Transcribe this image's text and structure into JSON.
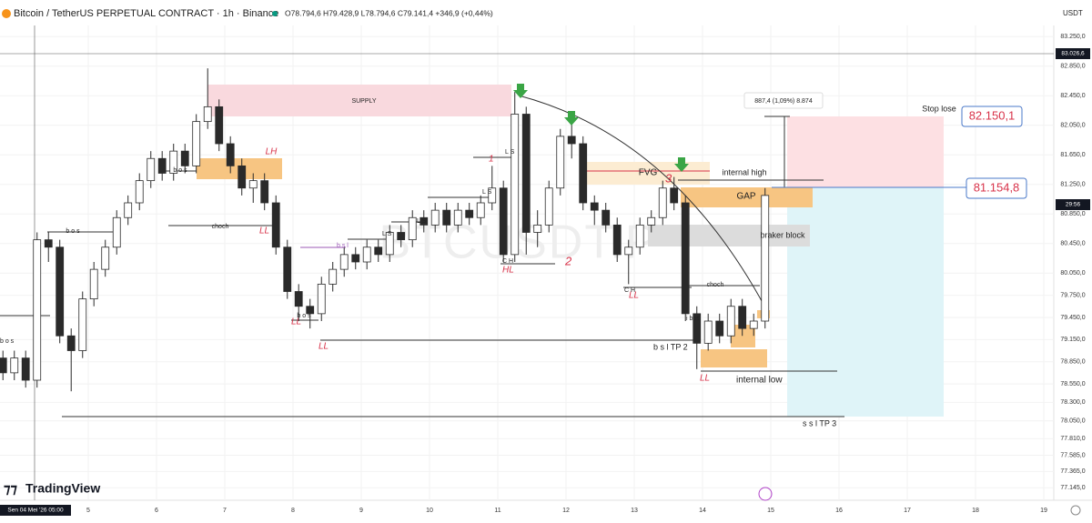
{
  "chart_data": {
    "type": "candlestick",
    "symbol": "Bitcoin / TetherUS PERPETUAL CONTRACT · 1h · Binance",
    "ohlc_legend": "O78.794,6 H79.428,9 L78.794,6 C79.141,4 +346,9 (+0,44%)",
    "currency": "USDT",
    "watermark": "BTCUSDT.P",
    "brand": "TradingView",
    "cursor_date": "Sen 04 Mei '26 05:00",
    "cursor_price": {
      "value": 83026.6,
      "label": "83.026,6"
    },
    "countdown": "29:56",
    "colors": {
      "up": "#ffffff",
      "down": "#2a2a2a",
      "border": "#2a2a2a"
    },
    "x": [
      3.75,
      3.917,
      4.083,
      4.25,
      4.417,
      4.583,
      4.75,
      4.917,
      5.083,
      5.25,
      5.417,
      5.583,
      5.75,
      5.917,
      6.083,
      6.25,
      6.417,
      6.583,
      6.75,
      6.917,
      7.083,
      7.25,
      7.417,
      7.583,
      7.75,
      7.917,
      8.083,
      8.25,
      8.417,
      8.583,
      8.75,
      8.917,
      9.083,
      9.25,
      9.417,
      9.583,
      9.75,
      9.917,
      10.083,
      10.25,
      10.417,
      10.583,
      10.75,
      10.917,
      11.083,
      11.25,
      11.417,
      11.583,
      11.75,
      11.917,
      12.083,
      12.25,
      12.417,
      12.583,
      12.75,
      12.917,
      13.083,
      13.25,
      13.417,
      13.583,
      13.75,
      13.917,
      14.083,
      14.25,
      14.417,
      14.583,
      14.75,
      14.917
    ],
    "open": [
      78900,
      78700,
      78900,
      78600,
      80500,
      80400,
      79200,
      79000,
      79700,
      80100,
      80400,
      80800,
      81000,
      81300,
      81600,
      81400,
      81700,
      81500,
      82100,
      82300,
      81800,
      81500,
      81200,
      81300,
      81000,
      80400,
      79800,
      79600,
      79500,
      79900,
      80100,
      80300,
      80200,
      80400,
      80300,
      80600,
      80500,
      80800,
      80700,
      80900,
      80700,
      80900,
      80800,
      81000,
      81200,
      80300,
      82200,
      80600,
      80700,
      81200,
      81900,
      81800,
      81000,
      80900,
      80700,
      80300,
      80400,
      80700,
      80800,
      81200,
      81000,
      79500,
      79100,
      79400,
      79200,
      79600,
      79300,
      79400
    ],
    "high": [
      79000,
      79000,
      79000,
      80600,
      80600,
      80500,
      79300,
      79800,
      80200,
      80500,
      80900,
      81100,
      81400,
      81700,
      81700,
      81800,
      81800,
      82200,
      82820,
      82400,
      81900,
      81600,
      81400,
      81400,
      81100,
      80500,
      79900,
      79700,
      80000,
      80200,
      80400,
      80400,
      80500,
      80500,
      80700,
      80700,
      80900,
      80900,
      81000,
      81000,
      81000,
      81000,
      81100,
      81500,
      81300,
      82500,
      82300,
      80900,
      81300,
      82000,
      82140,
      81900,
      81100,
      81000,
      80800,
      80500,
      80800,
      80900,
      81300,
      81350,
      81100,
      79600,
      79500,
      79500,
      79700,
      79700,
      79500,
      81200
    ],
    "low": [
      78600,
      78600,
      78500,
      78500,
      80200,
      79100,
      78450,
      78900,
      79600,
      80000,
      80300,
      80700,
      80900,
      81200,
      81300,
      81300,
      81400,
      81400,
      82000,
      81700,
      81400,
      81100,
      81000,
      80900,
      80300,
      79700,
      79400,
      79300,
      79400,
      79800,
      80000,
      80100,
      80100,
      80200,
      80200,
      80400,
      80400,
      80600,
      80600,
      80600,
      80600,
      80700,
      80700,
      80900,
      80200,
      80200,
      80300,
      80400,
      80600,
      81100,
      81600,
      80900,
      80700,
      80600,
      80200,
      79900,
      80300,
      80600,
      80700,
      80900,
      79400,
      78750,
      79000,
      79100,
      79100,
      79200,
      79200,
      79300
    ],
    "close": [
      78700,
      78900,
      78600,
      80500,
      80400,
      79200,
      79000,
      79700,
      80100,
      80400,
      80800,
      81000,
      81300,
      81600,
      81400,
      81700,
      81500,
      82100,
      82300,
      81800,
      81500,
      81200,
      81300,
      81000,
      80400,
      79800,
      79600,
      79500,
      79900,
      80100,
      80300,
      80200,
      80400,
      80300,
      80600,
      80500,
      80800,
      80700,
      80900,
      80700,
      80900,
      80800,
      81000,
      81200,
      80300,
      82200,
      80600,
      80700,
      81200,
      81900,
      81800,
      81000,
      80900,
      80700,
      80300,
      80400,
      80700,
      80800,
      81200,
      81000,
      79500,
      79100,
      79400,
      79200,
      79600,
      79300,
      79400,
      81100
    ],
    "xlim": [
      3.707,
      19.147
    ],
    "xticks": [
      5,
      6,
      7,
      8,
      9,
      10,
      11,
      12,
      13,
      14,
      15,
      16,
      17,
      18,
      19
    ],
    "ylim": [
      77000,
      83400
    ],
    "yticks": [
      {
        "value": 83250,
        "label": "83.250,0"
      },
      {
        "value": 82850,
        "label": "82.850,0"
      },
      {
        "value": 82450,
        "label": "82.450,0"
      },
      {
        "value": 82050,
        "label": "82.050,0"
      },
      {
        "value": 81650,
        "label": "81.650,0"
      },
      {
        "value": 81250,
        "label": "81.250,0"
      },
      {
        "value": 80850,
        "label": "80.850,0"
      },
      {
        "value": 80450,
        "label": "80.450,0"
      },
      {
        "value": 80050,
        "label": "80.050,0"
      },
      {
        "value": 79750,
        "label": "79.750,0"
      },
      {
        "value": 79450,
        "label": "79.450,0"
      },
      {
        "value": 79150,
        "label": "79.150,0"
      },
      {
        "value": 78850,
        "label": "78.850,0"
      },
      {
        "value": 78550,
        "label": "78.550,0"
      },
      {
        "value": 78300,
        "label": "78.300,0"
      },
      {
        "value": 78050,
        "label": "78.050,0"
      },
      {
        "value": 77810,
        "label": "77.810,0"
      },
      {
        "value": 77585,
        "label": "77.585,0"
      },
      {
        "value": 77365,
        "label": "77.365,0"
      },
      {
        "value": 77145,
        "label": "77.145,0"
      }
    ],
    "annotations": {
      "supply": "SUPPLY",
      "bos": "b o s",
      "lh": "LH",
      "choch": "choch",
      "ll": "LL",
      "bsl": "b s l",
      "ls": "L S",
      "one": "1",
      "two": "2",
      "three": "3",
      "ch": "C H",
      "hl": "HL",
      "fvg": "FVG",
      "internal_high": "internal high",
      "gap": "GAP",
      "braker_block": "braker block",
      "stop_lose": "Stop lose",
      "stop_price": "82.150,1",
      "entry_price": "81.154,8",
      "measure": "887,4 (1,09%) 8.874",
      "bsl_tp2": "b s l  TP 2",
      "internal_low": "internal low",
      "ssl_tp3": "s s l  TP 3",
      "ibos": "i bos"
    }
  }
}
